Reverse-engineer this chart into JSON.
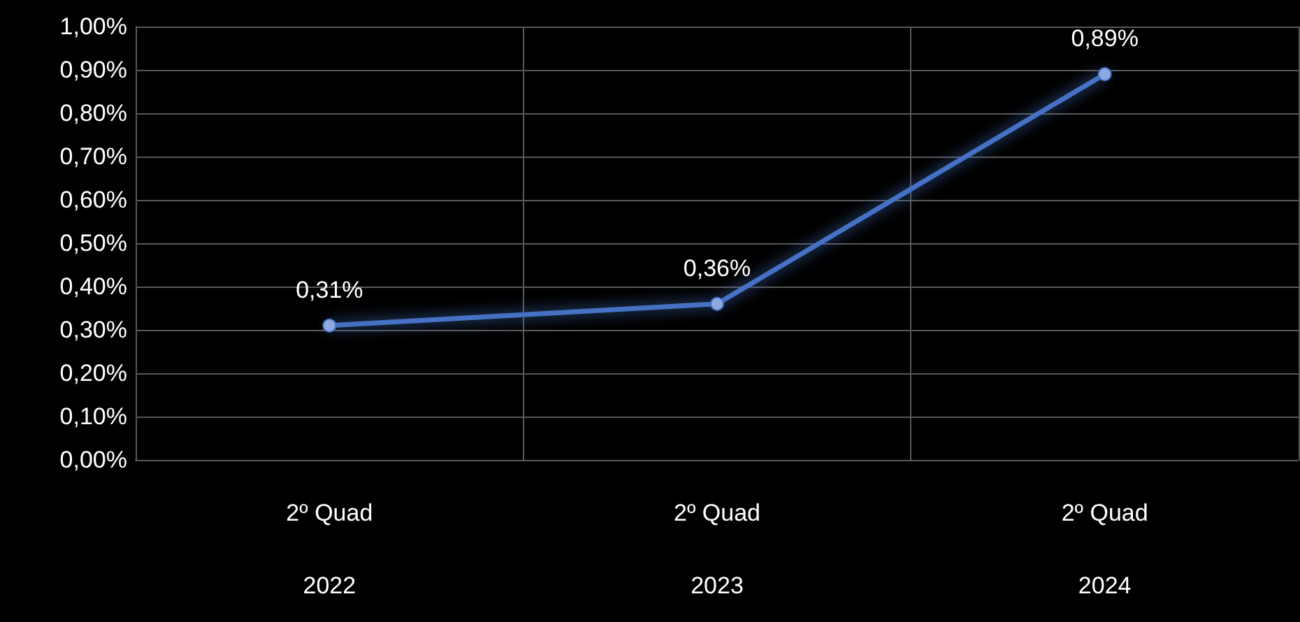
{
  "chart_data": {
    "type": "line",
    "categories": [
      "2º Quad\n2022",
      "2º Quad\n2023",
      "2º Quad\n2024"
    ],
    "series": [
      {
        "color": "#4472c4",
        "values": [
          0.31,
          0.36,
          0.89
        ],
        "value_labels": [
          "0,31%",
          "0,36%",
          "0,89%"
        ]
      }
    ],
    "ylim": [
      0,
      1
    ],
    "yticks": [
      {
        "value": 0,
        "label": "0,00%"
      },
      {
        "value": 0.1,
        "label": "0,10%"
      },
      {
        "value": 0.2,
        "label": "0,20%"
      },
      {
        "value": 0.3,
        "label": "0,30%"
      },
      {
        "value": 0.4,
        "label": "0,40%"
      },
      {
        "value": 0.5,
        "label": "0,50%"
      },
      {
        "value": 0.6,
        "label": "0,60%"
      },
      {
        "value": 0.7,
        "label": "0,70%"
      },
      {
        "value": 0.8,
        "label": "0,80%"
      },
      {
        "value": 0.9,
        "label": "0,90%"
      },
      {
        "value": 1,
        "label": "1,00%"
      }
    ],
    "grid": true,
    "marker": "circle",
    "line_style": "solid"
  }
}
